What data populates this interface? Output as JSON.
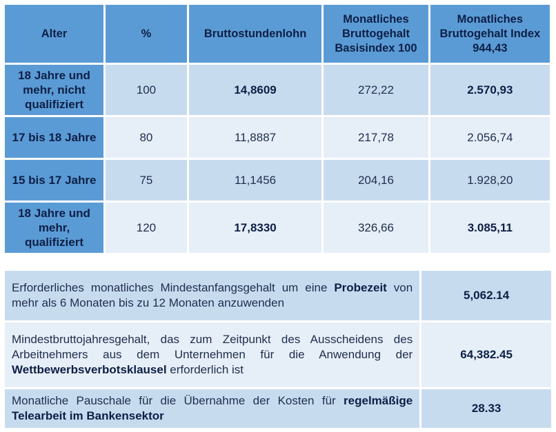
{
  "wage_table": {
    "headers": [
      "Alter",
      "%",
      "Bruttostundenlohn",
      "Monatliches Bruttogehalt Basisindex 100",
      "Monatliches Bruttogehalt Index 944,43"
    ],
    "rows": [
      {
        "age": "18 Jahre und mehr, nicht qualifiziert",
        "percent": "100",
        "hourly": "14,8609",
        "monthly_base": "272,22",
        "monthly_index": "2.570,93"
      },
      {
        "age": "17 bis 18 Jahre",
        "percent": "80",
        "hourly": "11,8887",
        "monthly_base": "217,78",
        "monthly_index": "2.056,74"
      },
      {
        "age": "15 bis 17 Jahre",
        "percent": "75",
        "hourly": "11,1456",
        "monthly_base": "204,16",
        "monthly_index": "1.928,20"
      },
      {
        "age": "18 Jahre und mehr, qualifiziert",
        "percent": "120",
        "hourly": "17,8330",
        "monthly_base": "326,66",
        "monthly_index": "3.085,11"
      }
    ]
  },
  "info_table": {
    "rows": [
      {
        "text_before": "Erforderliches monatliches Mindestanfangsgehalt um eine ",
        "text_bold": "Probezeit",
        "text_after": " von mehr als 6 Monaten bis zu 12 Monaten anzuwenden",
        "amount": "5,062.14"
      },
      {
        "text_before": "Mindestbruttojahresgehalt, das zum Zeitpunkt des Ausscheidens des Arbeitnehmers aus dem Unternehmen für die Anwendung der ",
        "text_bold": "Wettbewerbsverbotsklausel",
        "text_after": " erforderlich ist",
        "amount": "64,382.45"
      },
      {
        "text_before": "Monatliche Pauschale für die Übernahme der Kosten für ",
        "text_bold": "regelmäßige Telearbeit im Bankensektor",
        "text_after": "",
        "amount": "28.33"
      }
    ]
  }
}
